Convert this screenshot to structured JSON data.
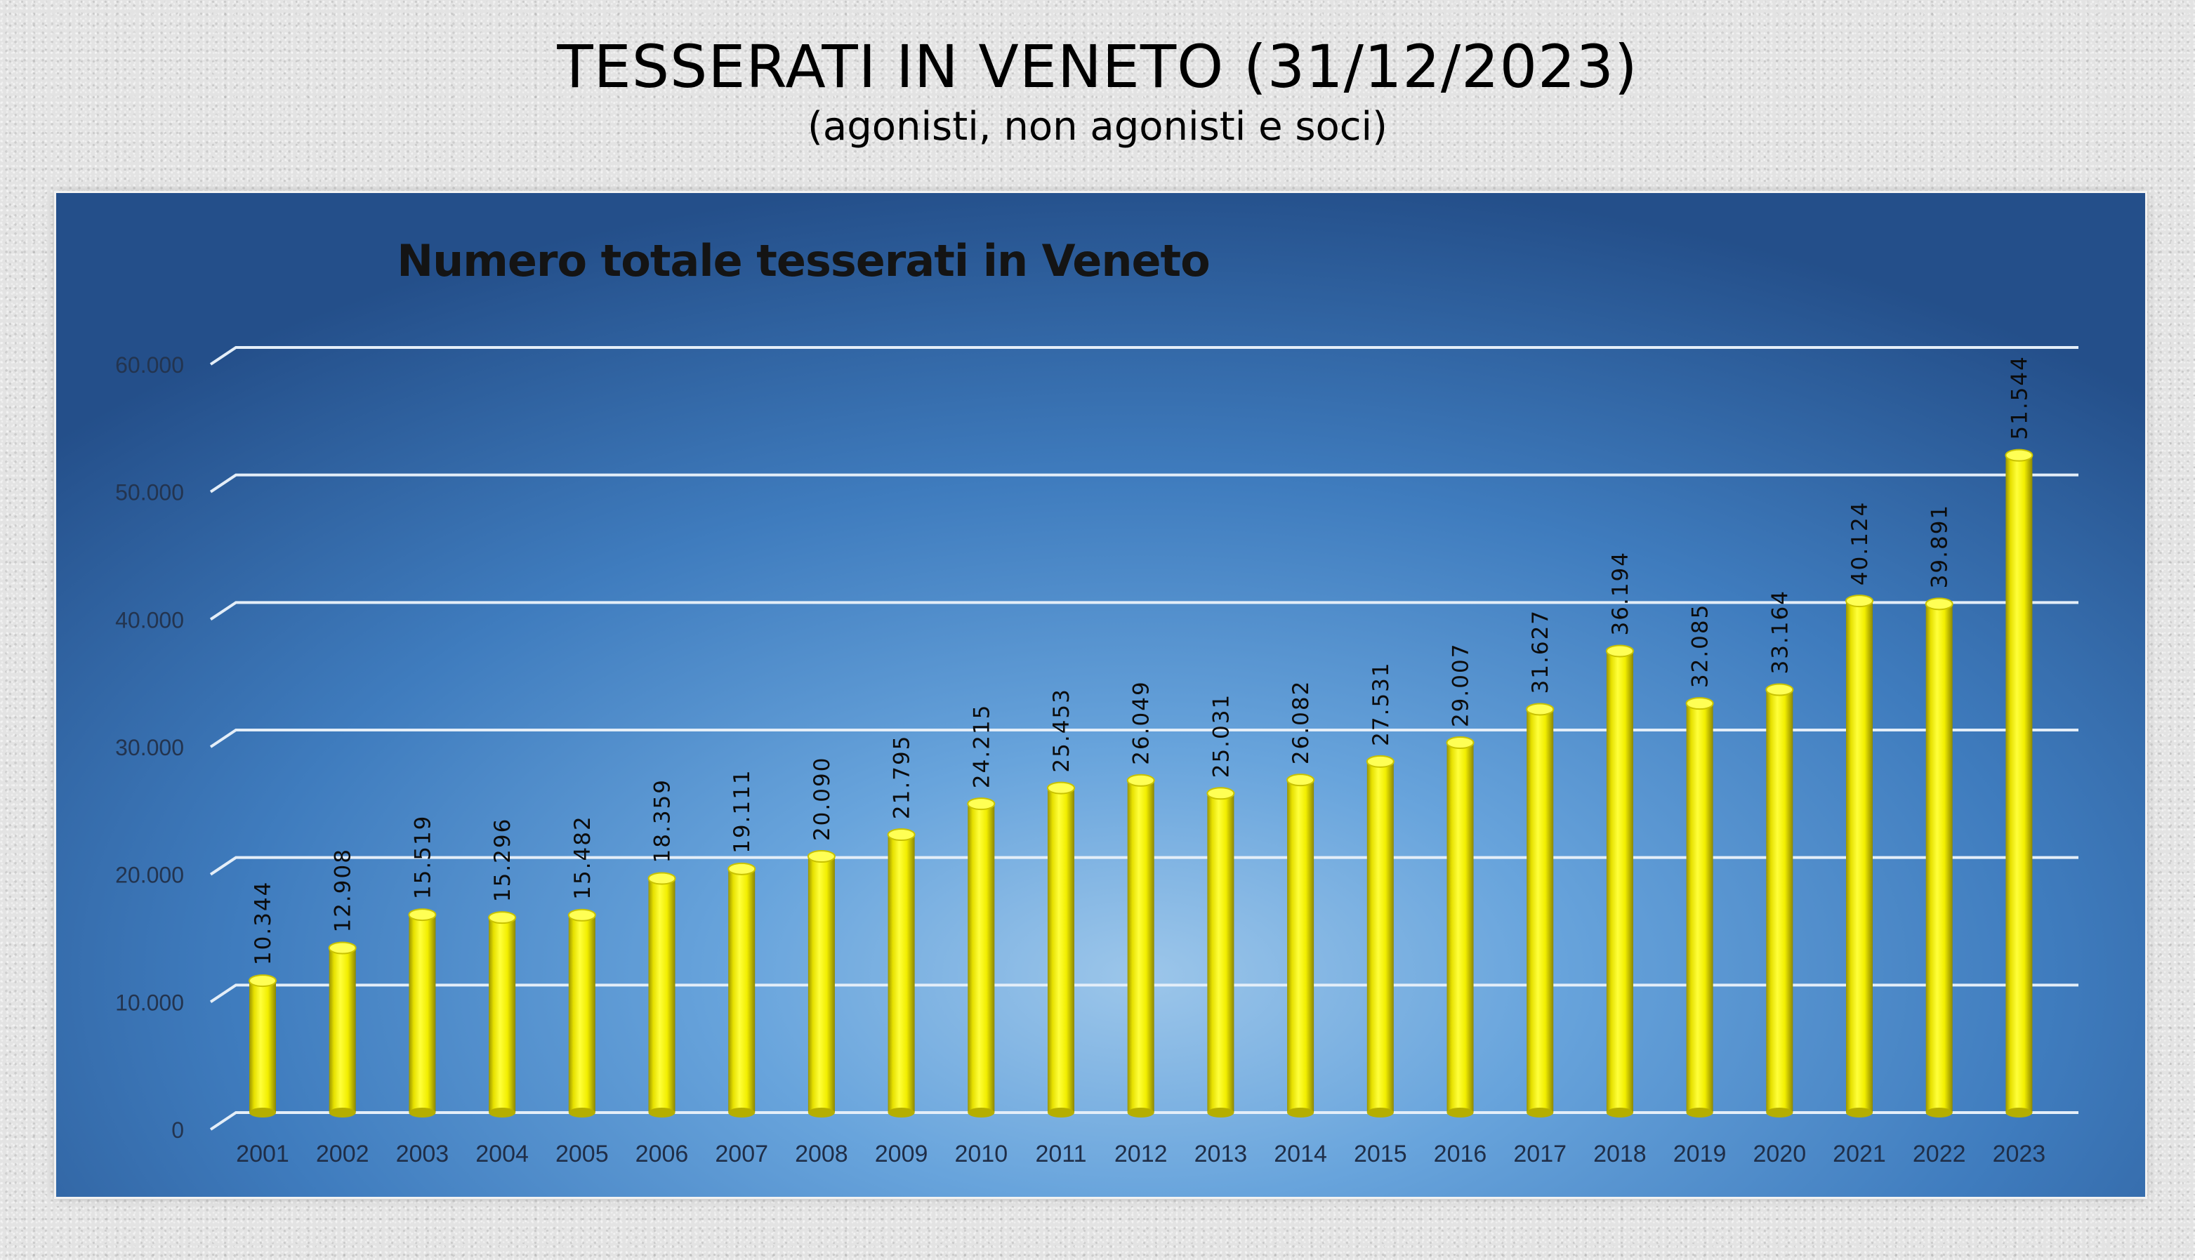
{
  "header": {
    "title": "TESSERATI IN VENETO (31/12/2023)",
    "subtitle": "(agonisti, non agonisti e soci)"
  },
  "colors": {
    "bar": "#ffff00",
    "bar_dark": "#8f8a00",
    "panel_blue": "#3f7cbe"
  },
  "chart_data": {
    "type": "bar",
    "title": "Numero totale tesserati in Veneto",
    "xlabel": "",
    "ylabel": "",
    "ylim": [
      0,
      60000
    ],
    "yticks": [
      0,
      10000,
      20000,
      30000,
      40000,
      50000,
      60000
    ],
    "ytick_labels": [
      "0",
      "10.000",
      "20.000",
      "30.000",
      "40.000",
      "50.000",
      "60.000"
    ],
    "grid": true,
    "categories": [
      "2001",
      "2002",
      "2003",
      "2004",
      "2005",
      "2006",
      "2007",
      "2008",
      "2009",
      "2010",
      "2011",
      "2012",
      "2013",
      "2014",
      "2015",
      "2016",
      "2017",
      "2018",
      "2019",
      "2020",
      "2021",
      "2022",
      "2023"
    ],
    "values": [
      10344,
      12908,
      15519,
      15296,
      15482,
      18359,
      19111,
      20090,
      21795,
      24215,
      25453,
      26049,
      25031,
      26082,
      27531,
      29007,
      31627,
      36194,
      32085,
      33164,
      40124,
      39891,
      51544
    ],
    "value_labels": [
      "10.344",
      "12.908",
      "15.519",
      "15.296",
      "15.482",
      "18.359",
      "19.111",
      "20.090",
      "21.795",
      "24.215",
      "25.453",
      "26.049",
      "25.031",
      "26.082",
      "27.531",
      "29.007",
      "31.627",
      "36.194",
      "32.085",
      "33.164",
      "40.124",
      "39.891",
      "51.544"
    ]
  }
}
